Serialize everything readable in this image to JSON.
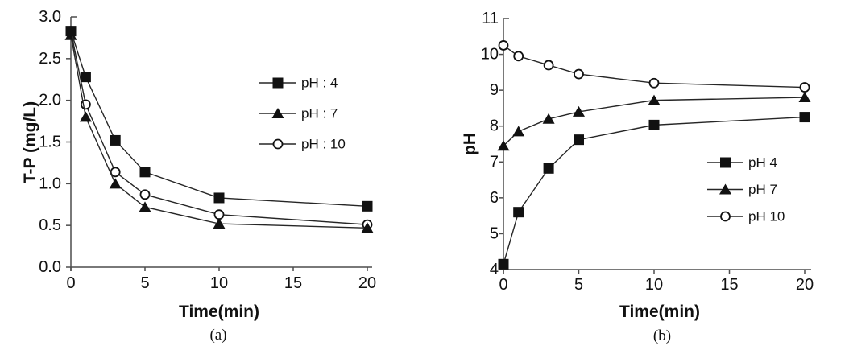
{
  "page": {
    "background": "#ffffff",
    "ink_color": "#111111",
    "axis_color": "#4d4d4d"
  },
  "chart_data": [
    {
      "id": "a",
      "type": "line",
      "title": "",
      "caption": "(a)",
      "xlabel": "Time(min)",
      "ylabel": "T-P (mg/L)",
      "x": [
        0,
        1,
        3,
        5,
        10,
        20
      ],
      "xlim": [
        0,
        20
      ],
      "xticks": [
        0,
        5,
        10,
        15,
        20
      ],
      "xtick_labels": [
        "0",
        "5",
        "10",
        "15",
        "20"
      ],
      "ylim": [
        0,
        3
      ],
      "yticks": [
        3.0,
        2.5,
        2.0,
        1.5,
        1.0,
        0.5,
        0.0
      ],
      "ytick_labels": [
        "3.0",
        "2.5",
        "2.0",
        "1.5",
        "1.0",
        "0.5",
        "0.0"
      ],
      "grid": false,
      "legend_position": "inside-upper-right",
      "series": [
        {
          "name": "pH : 4",
          "marker": "filled-square",
          "color": "#111111",
          "values": [
            2.83,
            2.28,
            1.52,
            1.14,
            0.83,
            0.73
          ]
        },
        {
          "name": "pH : 7",
          "marker": "filled-triangle",
          "color": "#111111",
          "values": [
            2.78,
            1.8,
            1.0,
            0.72,
            0.52,
            0.47
          ]
        },
        {
          "name": "pH : 10",
          "marker": "open-circle",
          "color": "#111111",
          "values": [
            2.83,
            1.95,
            1.14,
            0.87,
            0.63,
            0.51
          ]
        }
      ]
    },
    {
      "id": "b",
      "type": "line",
      "title": "",
      "caption": "(b)",
      "xlabel": "Time(min)",
      "ylabel": "pH",
      "x": [
        0,
        1,
        3,
        5,
        10,
        20
      ],
      "xlim": [
        0,
        20
      ],
      "xticks": [
        0,
        5,
        10,
        15,
        20
      ],
      "xtick_labels": [
        "0",
        "5",
        "10",
        "15",
        "20"
      ],
      "ylim": [
        4,
        11
      ],
      "yticks": [
        11,
        10,
        9,
        8,
        7,
        6,
        5,
        4
      ],
      "ytick_labels": [
        "11",
        "10",
        "9",
        "8",
        "7",
        "6",
        "5",
        "4"
      ],
      "grid": false,
      "legend_position": "inside-lower-right",
      "series": [
        {
          "name": "pH 4",
          "marker": "filled-square",
          "color": "#111111",
          "values": [
            4.15,
            5.6,
            6.82,
            7.62,
            8.03,
            8.25
          ]
        },
        {
          "name": "pH 7",
          "marker": "filled-triangle",
          "color": "#111111",
          "values": [
            7.45,
            7.85,
            8.2,
            8.4,
            8.72,
            8.8
          ]
        },
        {
          "name": "pH 10",
          "marker": "open-circle",
          "color": "#111111",
          "values": [
            10.25,
            9.95,
            9.7,
            9.45,
            9.2,
            9.08
          ]
        }
      ]
    }
  ]
}
